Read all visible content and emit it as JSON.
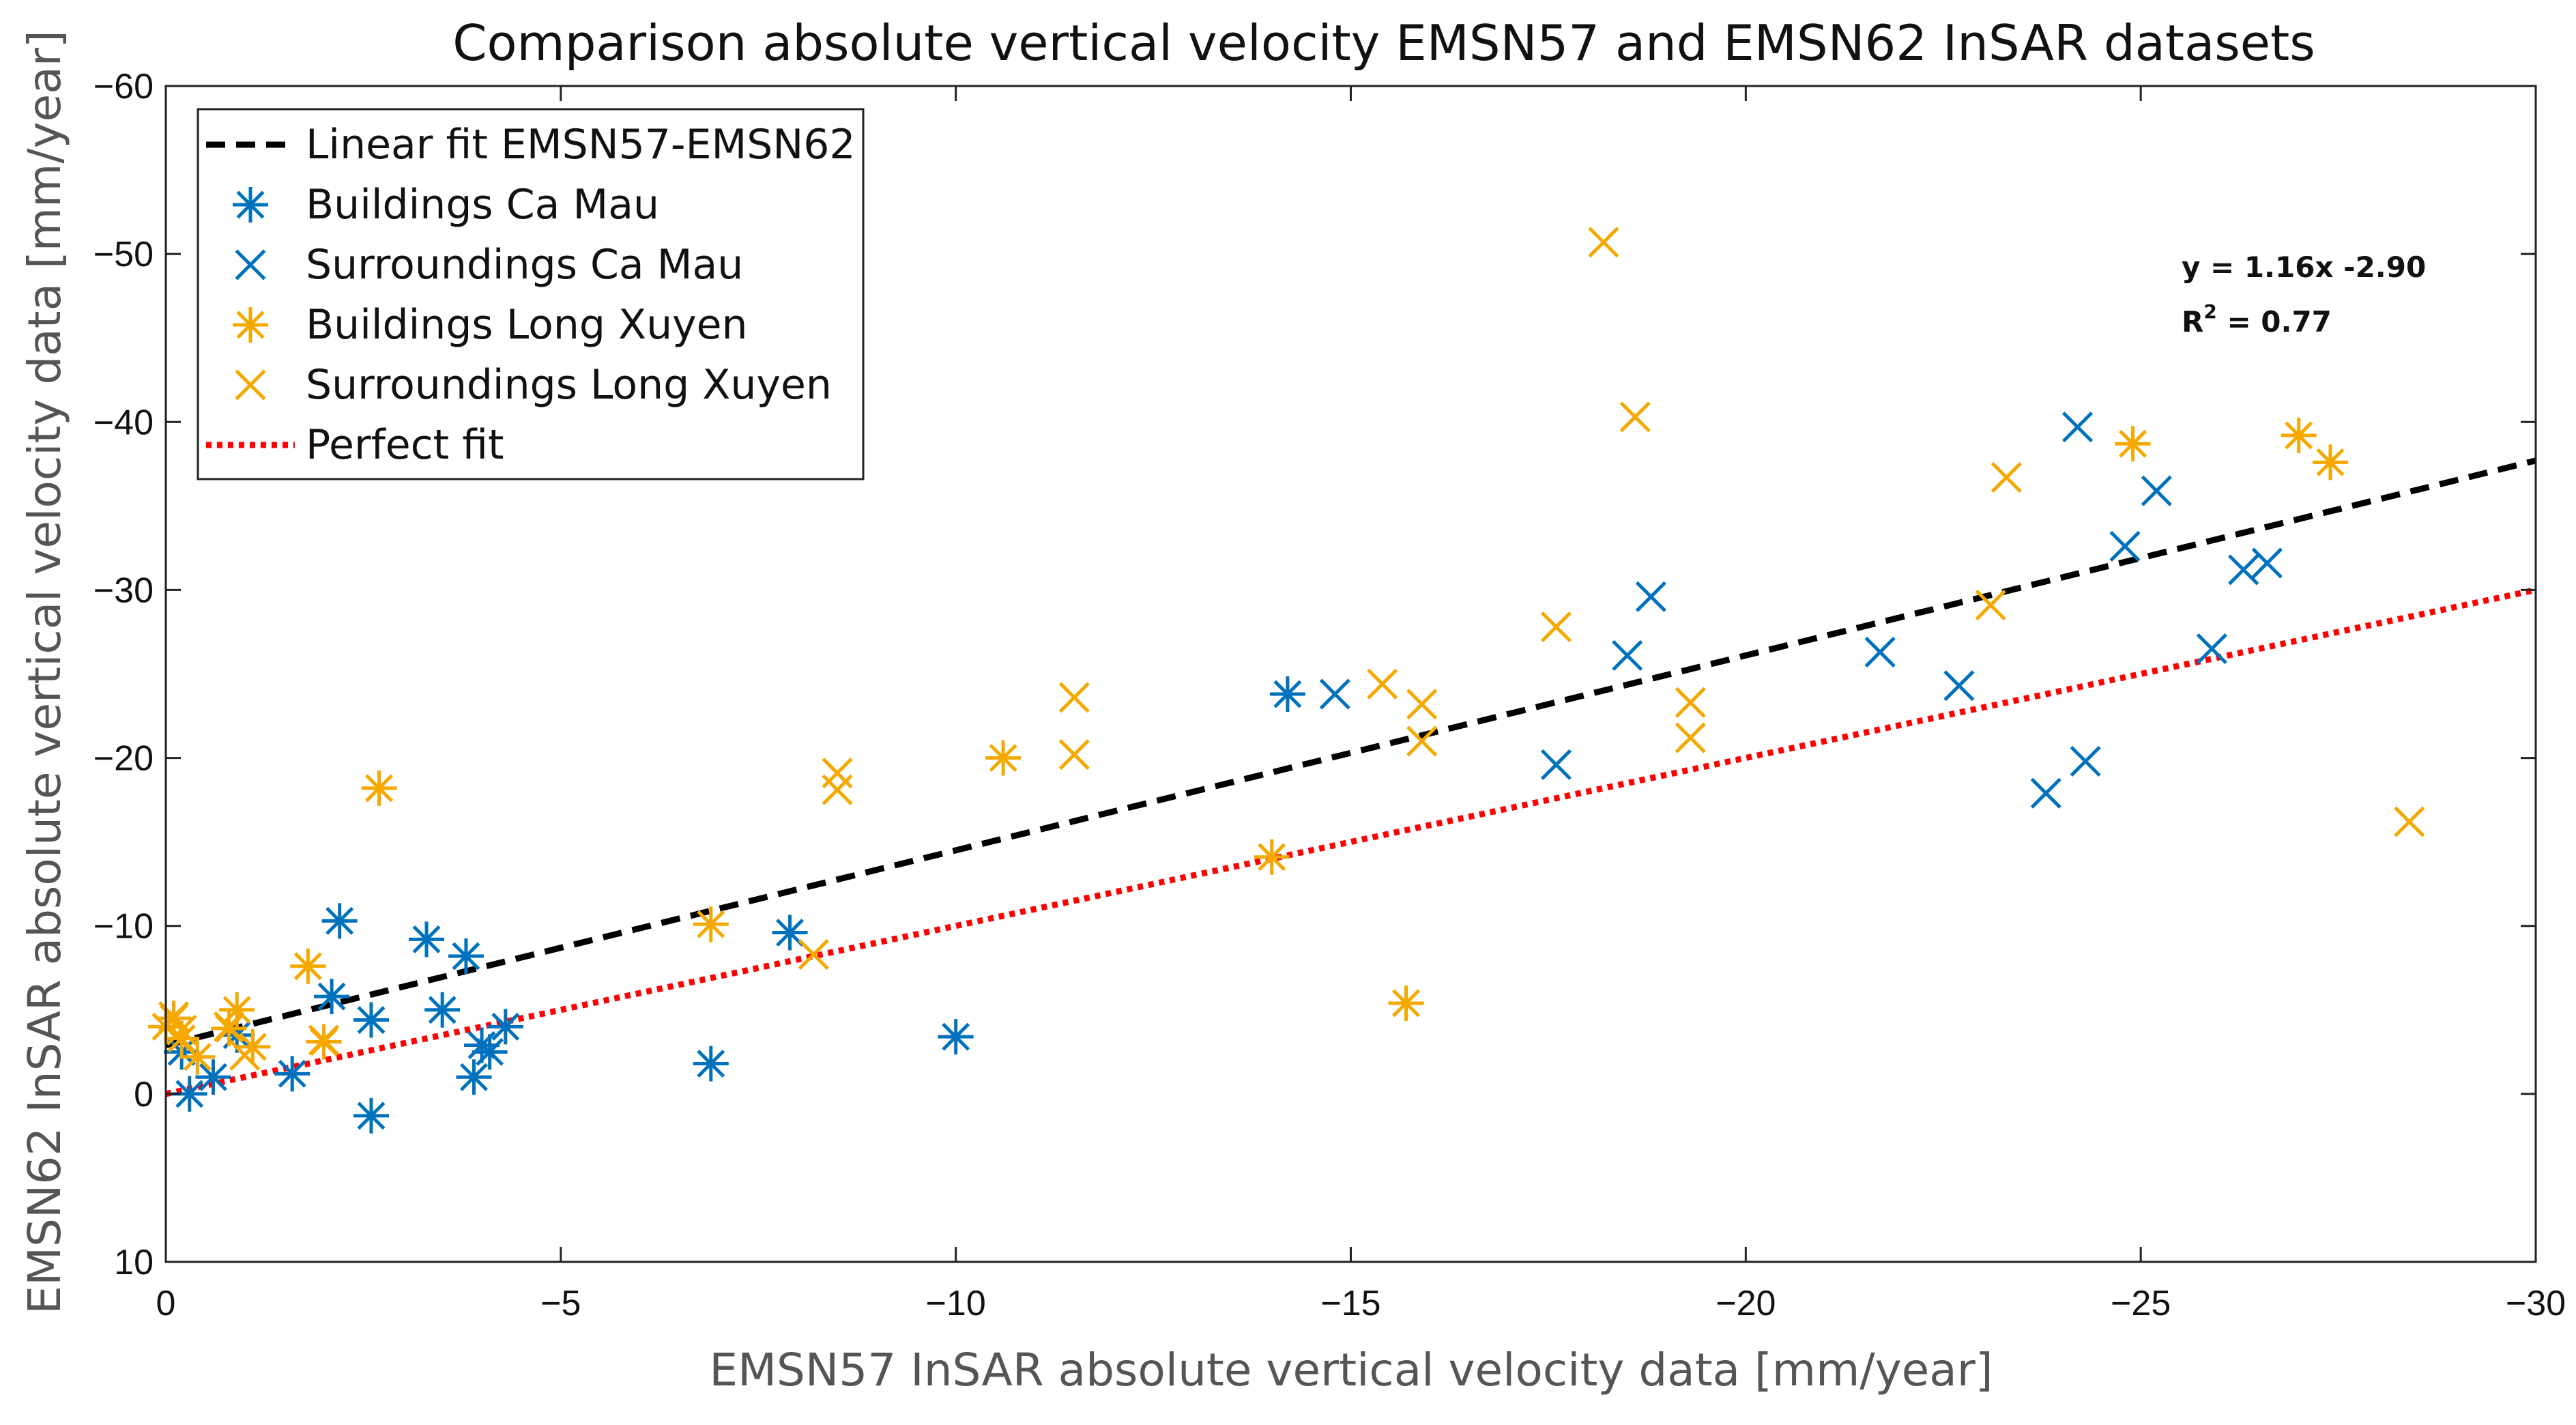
{
  "chart_data": {
    "type": "scatter",
    "title": "Comparison absolute vertical velocity EMSN57 and EMSN62 InSAR datasets",
    "xlabel": "EMSN57 InSAR absolute vertical velocity data [mm/year]",
    "ylabel": "EMSN62 InSAR absolute vertical velocity data [mm/year]",
    "xlim": [
      0,
      -30
    ],
    "ylim": [
      10,
      -60
    ],
    "xticks": [
      0,
      -5,
      -10,
      -15,
      -20,
      -25,
      -30
    ],
    "yticks": [
      10,
      0,
      -10,
      -20,
      -30,
      -40,
      -50,
      -60
    ],
    "grid": false,
    "legend_position": "top-left",
    "annotation": {
      "equation": "y = 1.16x -2.90",
      "r2_prefix": "R",
      "r2_sup": "2",
      "r2_value": " = 0.77"
    },
    "colors": {
      "blue": "#0072BD",
      "orange": "#F5A800",
      "red": "#FF0000",
      "black": "#000000"
    },
    "lines": [
      {
        "name": "Linear fit EMSN57-EMSN62",
        "style": "dashed",
        "color": "#000000",
        "x": [
          0,
          -30
        ],
        "y": [
          -2.9,
          -37.7
        ]
      },
      {
        "name": "Perfect fit",
        "style": "dotted",
        "color": "#FF0000",
        "x": [
          0,
          -30
        ],
        "y": [
          0,
          -30
        ]
      }
    ],
    "series": [
      {
        "name": "Buildings Ca Mau",
        "marker": "asterisk",
        "color": "#0072BD",
        "points": [
          [
            -0.2,
            -2.5
          ],
          [
            -0.3,
            0.0
          ],
          [
            -0.6,
            -1.0
          ],
          [
            -0.9,
            -3.5
          ],
          [
            -1.6,
            -1.2
          ],
          [
            -2.1,
            -5.8
          ],
          [
            -2.2,
            -10.3
          ],
          [
            -2.6,
            -4.4
          ],
          [
            -2.6,
            1.3
          ],
          [
            -3.3,
            -9.2
          ],
          [
            -3.5,
            -5.0
          ],
          [
            -3.8,
            -8.2
          ],
          [
            -3.9,
            -1.0
          ],
          [
            -4.0,
            -2.9
          ],
          [
            -4.1,
            -2.5
          ],
          [
            -4.3,
            -4.0
          ],
          [
            -6.9,
            -1.8
          ],
          [
            -7.9,
            -9.6
          ],
          [
            -10.0,
            -3.4
          ],
          [
            -14.2,
            -23.8
          ]
        ]
      },
      {
        "name": "Surroundings Ca Mau",
        "marker": "x",
        "color": "#0072BD",
        "points": [
          [
            -14.8,
            -23.8
          ],
          [
            -17.6,
            -19.6
          ],
          [
            -18.5,
            -26.1
          ],
          [
            -18.8,
            -29.6
          ],
          [
            -21.7,
            -26.3
          ],
          [
            -22.7,
            -24.3
          ],
          [
            -23.8,
            -17.9
          ],
          [
            -24.2,
            -39.7
          ],
          [
            -24.3,
            -19.8
          ],
          [
            -24.8,
            -32.6
          ],
          [
            -25.2,
            -35.9
          ],
          [
            -25.9,
            -26.5
          ],
          [
            -26.3,
            -31.2
          ],
          [
            -26.6,
            -31.6
          ]
        ]
      },
      {
        "name": "Buildings Long Xuyen",
        "marker": "asterisk",
        "color": "#F5A800",
        "points": [
          [
            0.0,
            -4.0
          ],
          [
            -0.1,
            -4.5
          ],
          [
            -0.2,
            -3.3
          ],
          [
            -0.4,
            -2.2
          ],
          [
            -0.8,
            -3.9
          ],
          [
            -0.9,
            -5.0
          ],
          [
            -1.1,
            -2.8
          ],
          [
            -1.8,
            -7.6
          ],
          [
            -2.0,
            -3.1
          ],
          [
            -2.7,
            -18.2
          ],
          [
            -6.9,
            -10.1
          ],
          [
            -10.6,
            -20.0
          ],
          [
            -14.0,
            -14.1
          ],
          [
            -15.7,
            -5.4
          ],
          [
            -24.9,
            -38.7
          ],
          [
            -27.0,
            -39.2
          ],
          [
            -27.4,
            -37.6
          ]
        ]
      },
      {
        "name": "Surroundings Long Xuyen",
        "marker": "x",
        "color": "#F5A800",
        "points": [
          [
            -0.1,
            -4.6
          ],
          [
            -0.2,
            -3.8
          ],
          [
            -0.8,
            -4.0
          ],
          [
            -1.0,
            -2.3
          ],
          [
            -2.0,
            -3.2
          ],
          [
            -8.2,
            -8.3
          ],
          [
            -8.5,
            -19.1
          ],
          [
            -8.5,
            -18.1
          ],
          [
            -11.5,
            -23.6
          ],
          [
            -11.5,
            -20.2
          ],
          [
            -15.4,
            -24.4
          ],
          [
            -15.9,
            -23.2
          ],
          [
            -15.9,
            -21.0
          ],
          [
            -17.6,
            -27.8
          ],
          [
            -18.2,
            -50.7
          ],
          [
            -18.6,
            -40.3
          ],
          [
            -19.3,
            -23.3
          ],
          [
            -19.3,
            -21.2
          ],
          [
            -23.1,
            -29.1
          ],
          [
            -23.3,
            -36.7
          ],
          [
            -28.4,
            -16.2
          ]
        ]
      }
    ]
  }
}
